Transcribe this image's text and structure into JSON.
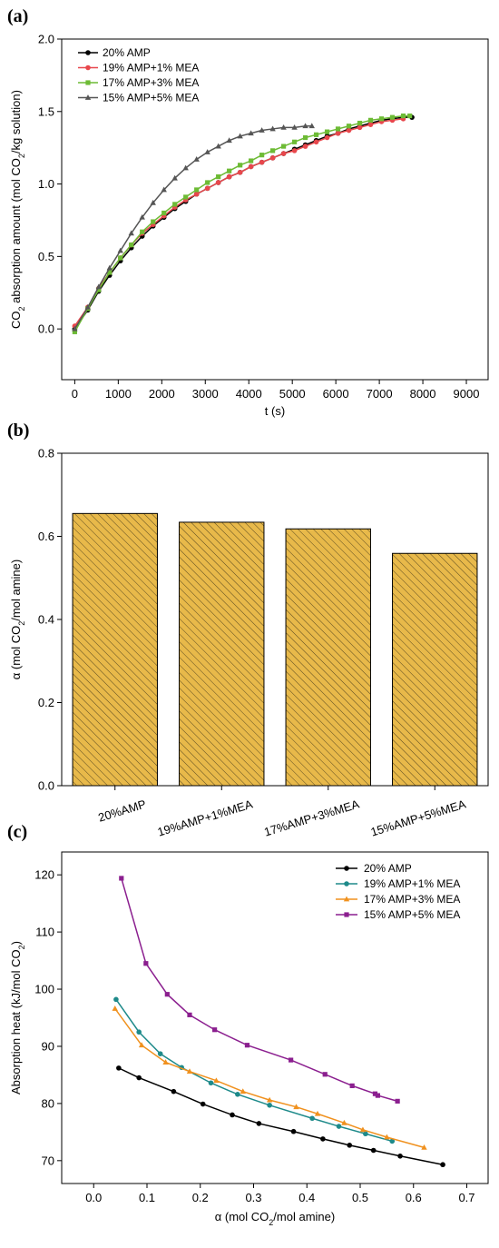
{
  "panels": {
    "a": "(a)",
    "b": "(b)",
    "c": "(c)"
  },
  "chart_data": [
    {
      "type": "line",
      "xlabel": "t (s)",
      "ylabel_pre": "CO",
      "ylabel_sub": "2",
      "ylabel_post": " absorption amount (mol CO",
      "ylabel_sub2": "2",
      "ylabel_end": "/kg solution)",
      "xlim": [
        -300,
        9500
      ],
      "ylim": [
        -0.35,
        2.0
      ],
      "xticks": [
        0,
        1000,
        2000,
        3000,
        4000,
        5000,
        6000,
        7000,
        8000,
        9000
      ],
      "yticks": [
        0.0,
        0.5,
        1.0,
        1.5,
        2.0
      ],
      "ytick_labels": [
        "0.0",
        "0.5",
        "1.0",
        "1.5",
        "2.0"
      ],
      "legend_position": "top-left",
      "series": [
        {
          "name": "20% AMP",
          "color": "#000000",
          "marker": "circle",
          "x": [
            0,
            300,
            550,
            800,
            1050,
            1300,
            1550,
            1800,
            2050,
            2300,
            2550,
            2800,
            3050,
            3300,
            3550,
            3800,
            4050,
            4300,
            4550,
            4800,
            5050,
            5300,
            5550,
            5800,
            6050,
            6300,
            6550,
            6800,
            7050,
            7300,
            7550,
            7750
          ],
          "y": [
            0.0,
            0.13,
            0.26,
            0.37,
            0.47,
            0.56,
            0.64,
            0.71,
            0.77,
            0.83,
            0.88,
            0.93,
            0.97,
            1.01,
            1.05,
            1.08,
            1.12,
            1.15,
            1.18,
            1.21,
            1.24,
            1.27,
            1.3,
            1.33,
            1.35,
            1.38,
            1.4,
            1.42,
            1.44,
            1.45,
            1.46,
            1.46
          ]
        },
        {
          "name": "19% AMP+1% MEA",
          "color": "#e8474c",
          "marker": "circle",
          "x": [
            0,
            300,
            550,
            800,
            1050,
            1300,
            1550,
            1800,
            2050,
            2300,
            2550,
            2800,
            3050,
            3300,
            3550,
            3800,
            4050,
            4300,
            4550,
            4800,
            5050,
            5300,
            5550,
            5800,
            6050,
            6300,
            6550,
            6800,
            7050,
            7300,
            7550
          ],
          "y": [
            0.02,
            0.15,
            0.28,
            0.39,
            0.49,
            0.58,
            0.66,
            0.72,
            0.78,
            0.84,
            0.89,
            0.93,
            0.97,
            1.01,
            1.05,
            1.08,
            1.12,
            1.15,
            1.18,
            1.21,
            1.23,
            1.26,
            1.29,
            1.32,
            1.35,
            1.37,
            1.39,
            1.41,
            1.43,
            1.44,
            1.45
          ]
        },
        {
          "name": "17% AMP+3% MEA",
          "color": "#6dbb35",
          "marker": "square",
          "x": [
            0,
            300,
            550,
            800,
            1050,
            1300,
            1550,
            1800,
            2050,
            2300,
            2550,
            2800,
            3050,
            3300,
            3550,
            3800,
            4050,
            4300,
            4550,
            4800,
            5050,
            5300,
            5550,
            5800,
            6050,
            6300,
            6550,
            6800,
            7050,
            7300,
            7550,
            7700
          ],
          "y": [
            -0.02,
            0.14,
            0.27,
            0.39,
            0.49,
            0.58,
            0.67,
            0.74,
            0.8,
            0.86,
            0.91,
            0.96,
            1.01,
            1.05,
            1.09,
            1.13,
            1.16,
            1.2,
            1.23,
            1.26,
            1.29,
            1.32,
            1.34,
            1.36,
            1.38,
            1.4,
            1.42,
            1.44,
            1.45,
            1.46,
            1.47,
            1.47
          ]
        },
        {
          "name": "15% AMP+5% MEA",
          "color": "#555555",
          "marker": "triangle",
          "x": [
            0,
            300,
            550,
            800,
            1050,
            1300,
            1550,
            1800,
            2050,
            2300,
            2550,
            2800,
            3050,
            3300,
            3550,
            3800,
            4050,
            4300,
            4550,
            4800,
            5050,
            5300,
            5450
          ],
          "y": [
            0.0,
            0.15,
            0.29,
            0.42,
            0.54,
            0.66,
            0.77,
            0.87,
            0.96,
            1.04,
            1.11,
            1.17,
            1.22,
            1.26,
            1.3,
            1.33,
            1.35,
            1.37,
            1.38,
            1.39,
            1.39,
            1.4,
            1.4
          ]
        }
      ]
    },
    {
      "type": "bar",
      "ylabel_pre": "α (mol CO",
      "ylabel_sub": "2",
      "ylabel_post": "/mol amine)",
      "ylim": [
        0.0,
        0.8
      ],
      "yticks": [
        0.0,
        0.2,
        0.4,
        0.6,
        0.8
      ],
      "ytick_labels": [
        "0.0",
        "0.2",
        "0.4",
        "0.6",
        "0.8"
      ],
      "categories": [
        "20%AMP",
        "19%AMP+1%MEA",
        "17%AMP+3%MEA",
        "15%AMP+5%MEA"
      ],
      "values": [
        0.655,
        0.634,
        0.618,
        0.559
      ],
      "bar_color": "#e8b94a",
      "hatch_color": "#5a4a20"
    },
    {
      "type": "line",
      "xlabel_pre": "α (mol CO",
      "xlabel_sub": "2",
      "xlabel_post": "/mol amine)",
      "ylabel_pre": "Absorption heat (kJ/mol CO",
      "ylabel_sub": "2",
      "ylabel_post": ")",
      "xlim": [
        -0.06,
        0.74
      ],
      "ylim": [
        66.0,
        124.0
      ],
      "xticks": [
        0.0,
        0.1,
        0.2,
        0.3,
        0.4,
        0.5,
        0.6,
        0.7
      ],
      "xtick_labels": [
        "0.0",
        "0.1",
        "0.2",
        "0.3",
        "0.4",
        "0.5",
        "0.6",
        "0.7"
      ],
      "yticks": [
        70,
        80,
        90,
        100,
        110,
        120
      ],
      "ytick_labels": [
        "70",
        "80",
        "90",
        "100",
        "110",
        "120"
      ],
      "legend_position": "top-right",
      "series": [
        {
          "name": "20% AMP",
          "color": "#000000",
          "marker": "circle",
          "x": [
            0.047,
            0.085,
            0.15,
            0.205,
            0.26,
            0.31,
            0.375,
            0.43,
            0.48,
            0.525,
            0.575,
            0.655
          ],
          "y": [
            86.2,
            84.5,
            82.1,
            79.9,
            78.0,
            76.5,
            75.1,
            73.8,
            72.7,
            71.8,
            70.8,
            69.3
          ]
        },
        {
          "name": "19% AMP+1% MEA",
          "color": "#1e8a8a",
          "marker": "circle",
          "x": [
            0.042,
            0.085,
            0.125,
            0.165,
            0.22,
            0.27,
            0.33,
            0.41,
            0.46,
            0.51,
            0.56
          ],
          "y": [
            98.2,
            92.5,
            88.7,
            86.3,
            83.6,
            81.6,
            79.7,
            77.4,
            76.0,
            74.7,
            73.4
          ]
        },
        {
          "name": "17% AMP+3% MEA",
          "color": "#f0911e",
          "marker": "triangle",
          "x": [
            0.04,
            0.09,
            0.135,
            0.18,
            0.23,
            0.28,
            0.33,
            0.38,
            0.42,
            0.47,
            0.505,
            0.55,
            0.62
          ],
          "y": [
            96.6,
            90.2,
            87.2,
            85.6,
            84.0,
            82.1,
            80.6,
            79.4,
            78.2,
            76.6,
            75.4,
            74.1,
            72.3
          ]
        },
        {
          "name": "15% AMP+5% MEA",
          "color": "#8b1f8f",
          "marker": "square",
          "x": [
            0.052,
            0.098,
            0.138,
            0.18,
            0.227,
            0.288,
            0.37,
            0.434,
            0.485,
            0.528,
            0.533,
            0.57
          ],
          "y": [
            119.4,
            104.5,
            99.1,
            95.5,
            92.9,
            90.2,
            87.6,
            85.1,
            83.1,
            81.7,
            81.4,
            80.4
          ]
        }
      ]
    }
  ]
}
